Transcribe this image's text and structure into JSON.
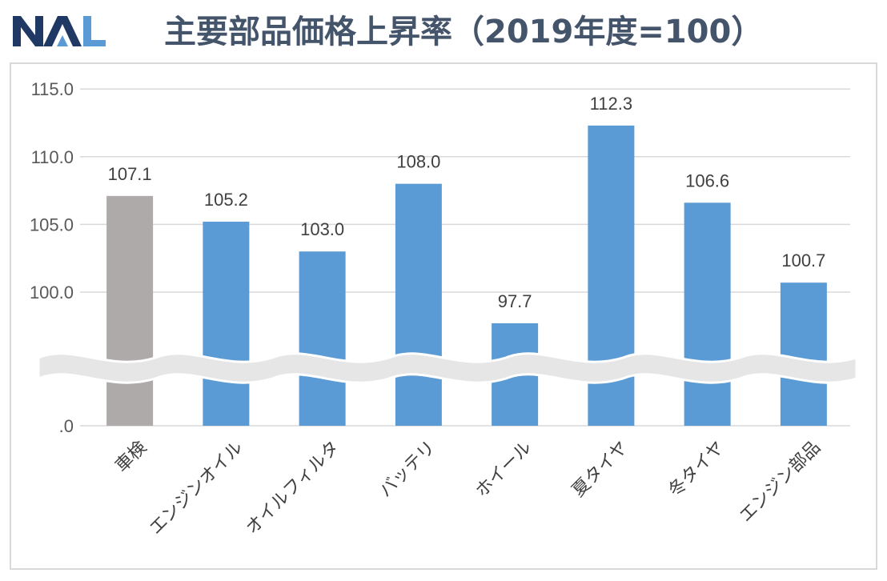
{
  "header": {
    "logo_text": "NAL",
    "title": "主要部品価格上昇率（2019年度=100）"
  },
  "colors": {
    "highlight_bar": "#aeaaaa",
    "bar": "#5b9bd5",
    "logo_dark": "#1f3864",
    "logo_light": "#5b9bd5",
    "title": "#44546a"
  },
  "chart_data": {
    "type": "bar",
    "categories": [
      "車検",
      "エンジンオイル",
      "オイルフィルタ",
      "バッテリ",
      "ホイール",
      "夏タイヤ",
      "冬タイヤ",
      "エンジン部品"
    ],
    "values": [
      107.1,
      105.2,
      103.0,
      108.0,
      97.7,
      112.3,
      106.6,
      100.7
    ],
    "value_labels": [
      "107.1",
      "105.2",
      "103.0",
      "108.0",
      "97.7",
      "112.3",
      "106.6",
      "100.7"
    ],
    "y_ticks": [
      {
        "value": 100,
        "label": "100.0"
      },
      {
        "value": 105,
        "label": "105.0"
      },
      {
        "value": 110,
        "label": "110.0"
      },
      {
        "value": 115,
        "label": "115.0"
      }
    ],
    "baseline_label": ".0",
    "ylim": [
      0,
      115
    ],
    "axis_break": true,
    "grid": true,
    "highlight_category": "車検"
  }
}
